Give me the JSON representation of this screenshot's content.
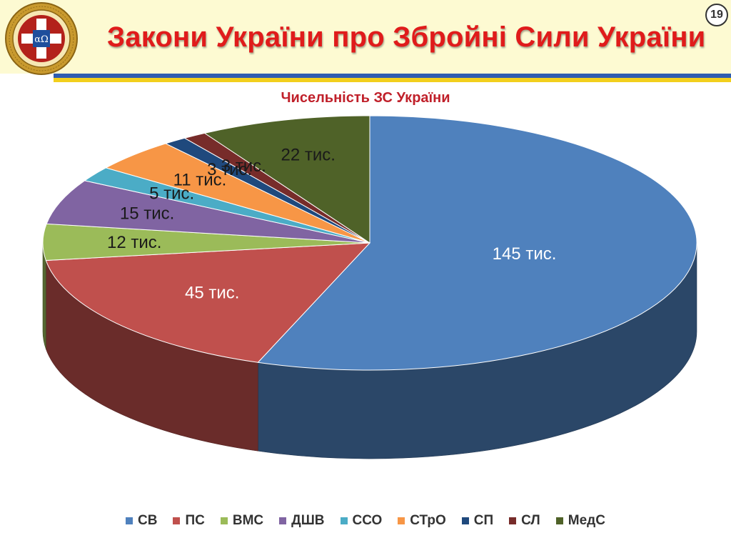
{
  "header": {
    "title": "Закони України про  Збройні Сили України",
    "slide_number": "19",
    "emblem_text": "УКРАЇНСЬКА ВІЙСЬКОВО-МЕДИЧНА АКАДЕМІЯ"
  },
  "chart_data": {
    "type": "pie",
    "title": "Чисельність ЗС України",
    "categories": [
      "СВ",
      "ПС",
      "ВМС",
      "ДШВ",
      "ССО",
      "СТрО",
      "СП",
      "СЛ",
      "МедС"
    ],
    "values": [
      145,
      45,
      12,
      15,
      5,
      11,
      3,
      3,
      22
    ],
    "data_labels": [
      "145 тис.",
      "45 тис.",
      "12 тис.",
      "15 тис.",
      "5 тис.",
      "11 тис.",
      "3 тис.",
      "3 тис.",
      "22 тис."
    ],
    "colors": [
      "#4f81bd",
      "#c0504d",
      "#9bbb59",
      "#8064a2",
      "#4bacc6",
      "#f79646",
      "#1f497d",
      "#772c2a",
      "#4f6228"
    ],
    "style": "3d",
    "legend_position": "bottom"
  }
}
